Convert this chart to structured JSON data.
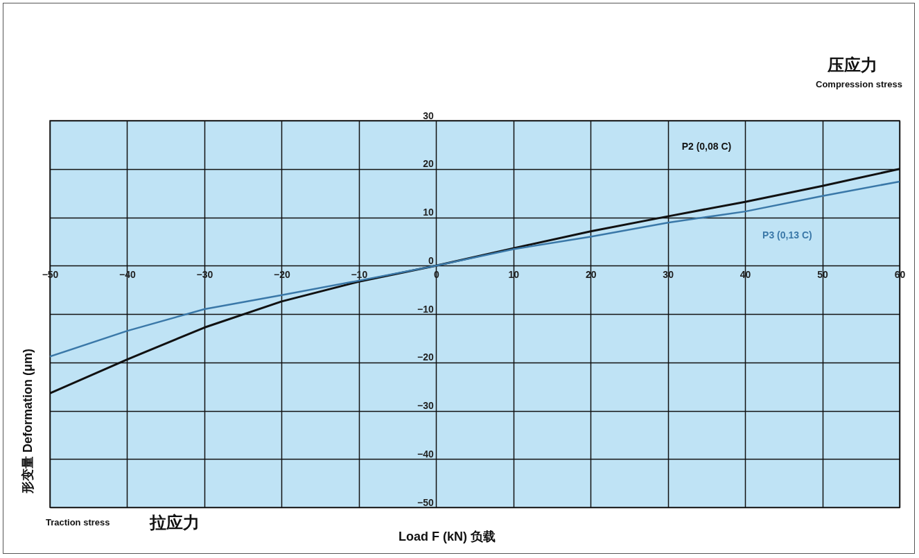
{
  "chart_data": {
    "type": "line",
    "xlabel": "Load F (kN)   负载",
    "ylabel": "形变量  Deformation  (μm)",
    "x": [
      -50,
      -40,
      -30,
      -20,
      -10,
      0,
      10,
      20,
      30,
      40,
      50,
      60
    ],
    "series": [
      {
        "name": "P2 (0,08 C)",
        "color": "#111111",
        "values": [
          -26.4,
          -19.4,
          -12.8,
          -7.4,
          -3.3,
          0,
          3.6,
          7.1,
          10.2,
          13.2,
          16.5,
          20
        ]
      },
      {
        "name": "P3 (0,13 C)",
        "color": "#3a78a8",
        "values": [
          -18.8,
          -13.5,
          -9,
          -6.1,
          -3.1,
          0,
          3.4,
          6,
          8.9,
          11.2,
          14.4,
          17.4
        ]
      }
    ],
    "xlim": [
      -50,
      60
    ],
    "xticks": [
      -50,
      -40,
      -30,
      -20,
      -10,
      0,
      10,
      20,
      30,
      40,
      50,
      60
    ],
    "ylim": [
      -50,
      30
    ],
    "yticks": [
      -50,
      -40,
      -30,
      -20,
      -10,
      0,
      10,
      20,
      30
    ],
    "grid": true,
    "line_style": "solid",
    "marker": "none",
    "annotations": [
      "压应力",
      "Compression stress",
      "Traction stress",
      "拉应力"
    ]
  }
}
